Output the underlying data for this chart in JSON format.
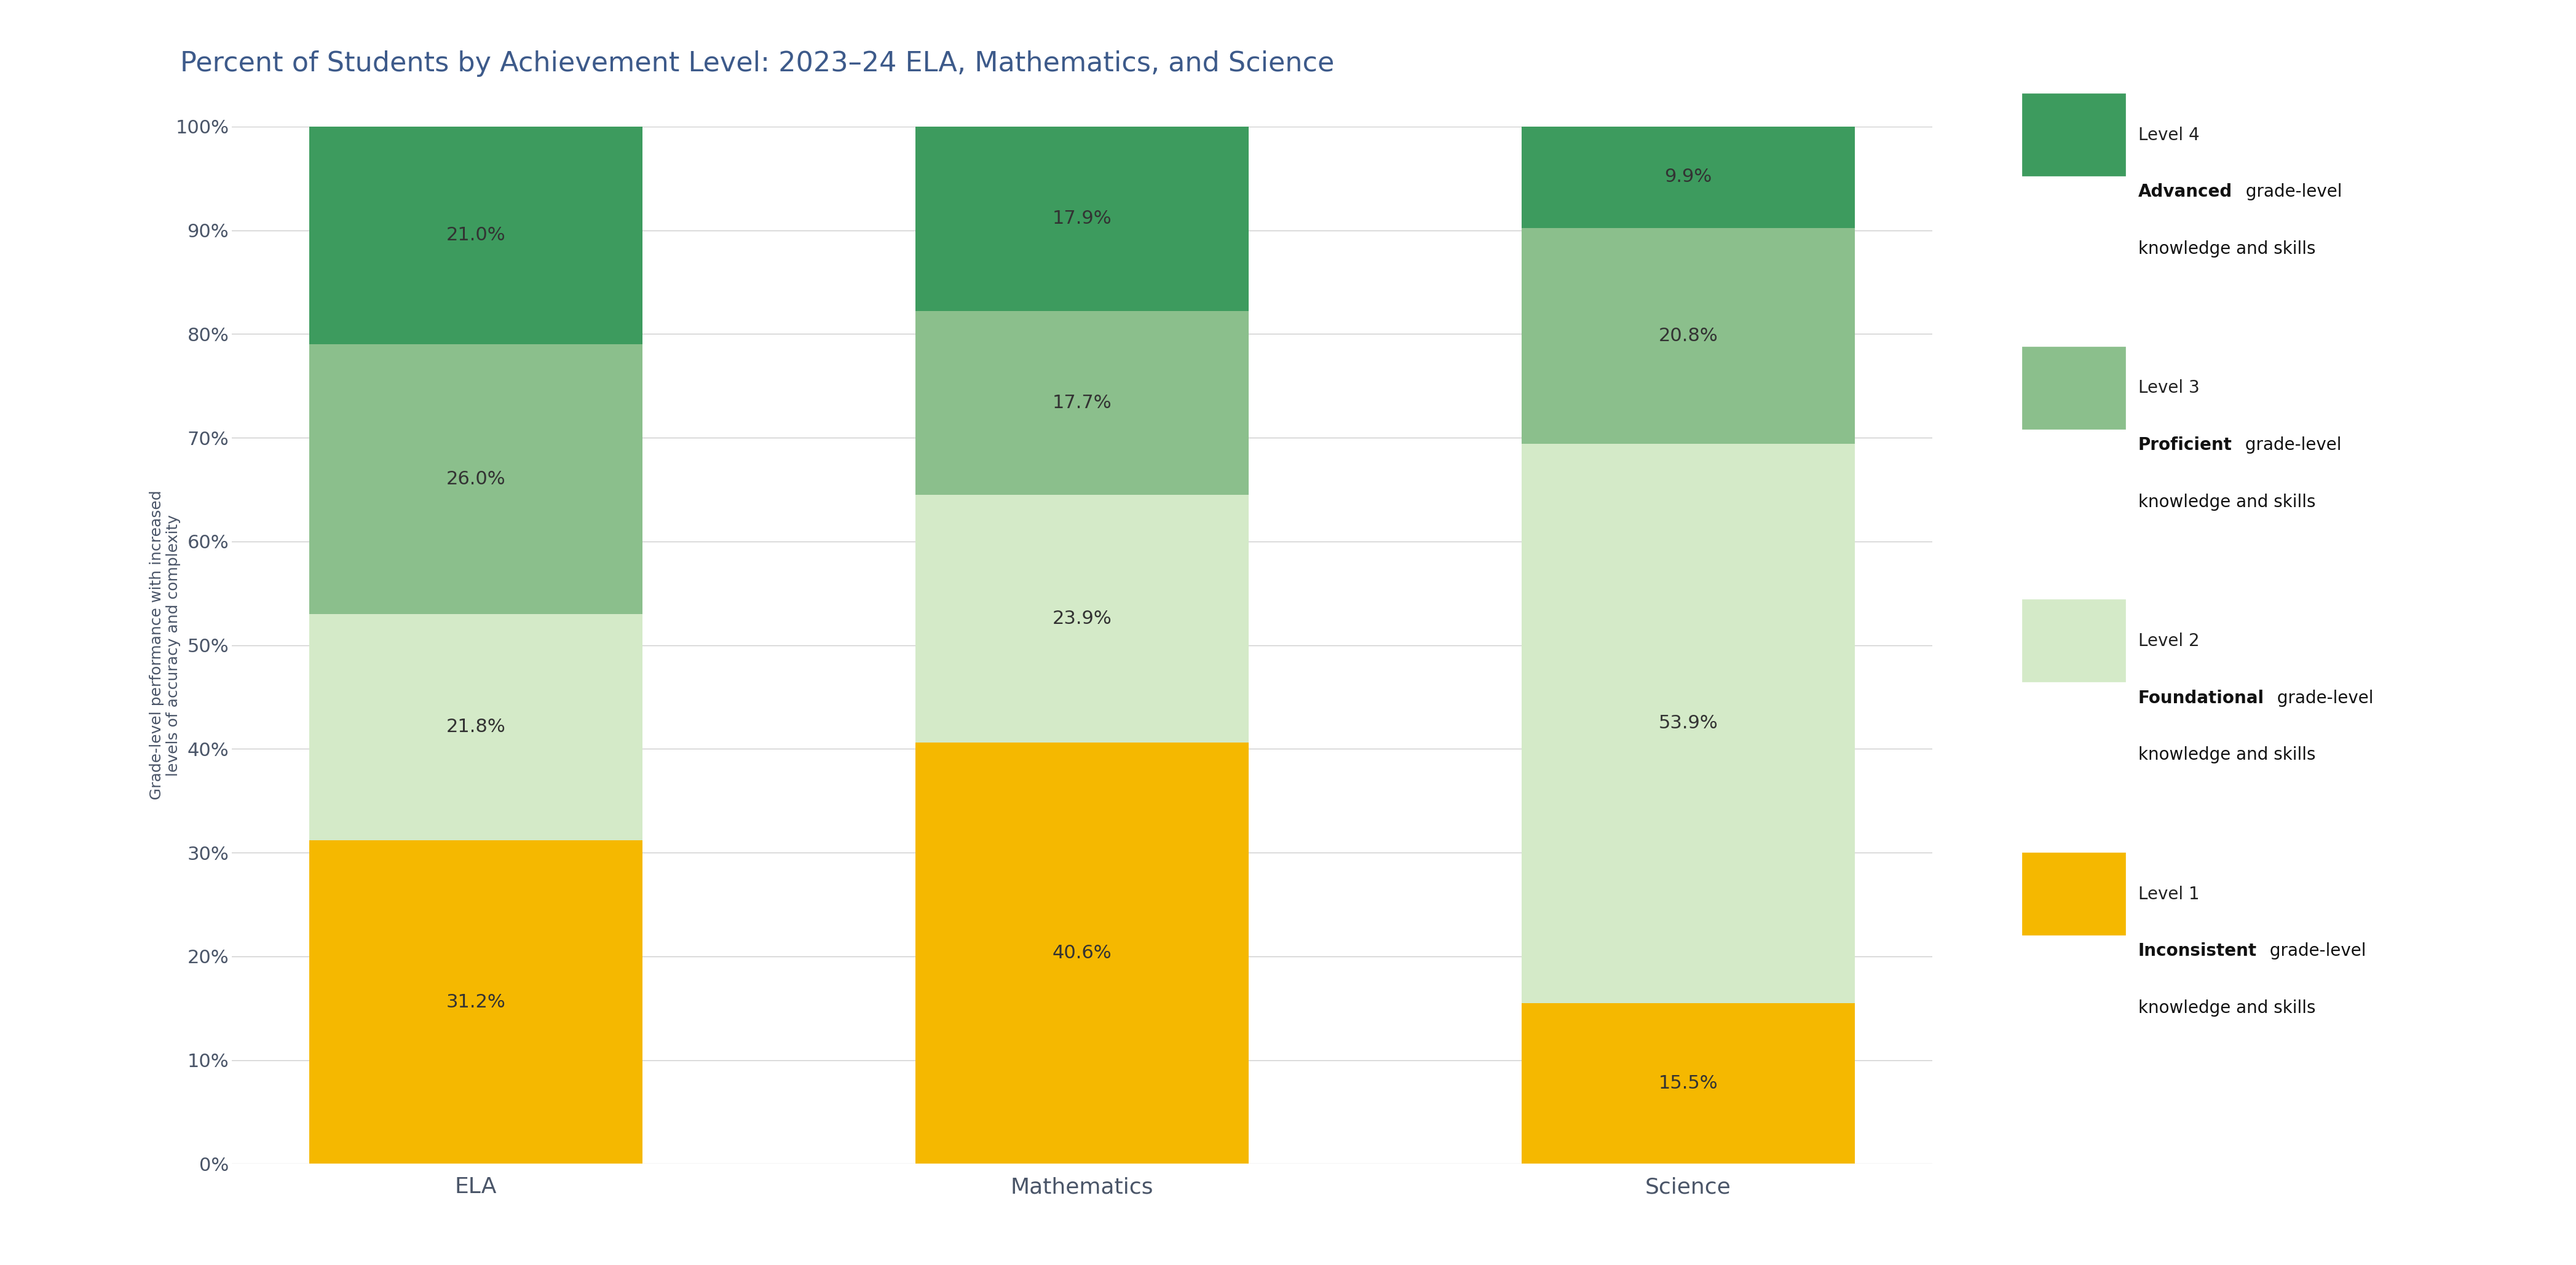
{
  "title": "Percent of Students by Achievement Level: 2023–24 ELA, Mathematics, and Science",
  "categories": [
    "ELA",
    "Mathematics",
    "Science"
  ],
  "levels": [
    "Level 1",
    "Level 2",
    "Level 3",
    "Level 4"
  ],
  "values": {
    "ELA": [
      31.2,
      21.8,
      26.0,
      21.0
    ],
    "Mathematics": [
      40.6,
      23.9,
      17.7,
      17.9
    ],
    "Science": [
      15.5,
      53.9,
      20.8,
      9.9
    ]
  },
  "colors": [
    "#F5B800",
    "#D4EAC8",
    "#8BBF8C",
    "#3D9B5E"
  ],
  "legend_entries": [
    {
      "level": "Level 4",
      "bold": "Advanced",
      "rest": " grade-level\nknowledge and skills",
      "color_idx": 3
    },
    {
      "level": "Level 3",
      "bold": "Proficient",
      "rest": " grade-level\nknowledge and skills",
      "color_idx": 2
    },
    {
      "level": "Level 2",
      "bold": "Foundational",
      "rest": " grade-level\nknowledge and skills",
      "color_idx": 1
    },
    {
      "level": "Level 1",
      "bold": "Inconsistent",
      "rest": " grade-level\nknowledge and skills",
      "color_idx": 0
    }
  ],
  "ylabel": "Grade-level performance with increased\nlevels of accuracy and complexity",
  "title_color": "#3D5A8A",
  "axis_label_color": "#4A5568",
  "background_color": "#FFFFFF",
  "grid_color": "#CCCCCC",
  "bar_width": 0.55,
  "title_fontsize": 32,
  "ylabel_fontsize": 18,
  "tick_fontsize": 22,
  "legend_fontsize": 20,
  "value_fontsize": 22
}
